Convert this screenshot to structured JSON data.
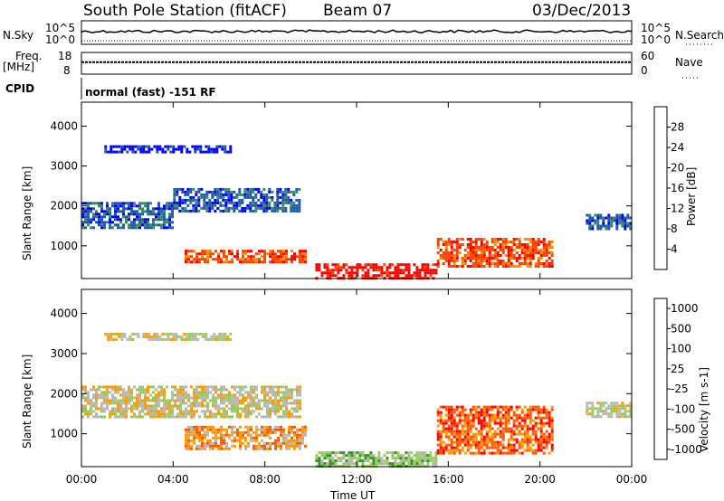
{
  "header": {
    "station": "South Pole Station (fitACF)",
    "beam": "Beam 07",
    "date": "03/Dec/2013"
  },
  "side_labels": {
    "nsky": "N.Sky",
    "freq": "Freq.",
    "freq_unit": "[MHz]",
    "cpid": "CPID",
    "nsearch": "N.Search",
    "nave": "Nave"
  },
  "noise_panel": {
    "left_top": "10^5",
    "left_bottom": "10^0",
    "right_top": "10^5",
    "right_bottom": "10^0"
  },
  "freq_panel": {
    "left_top": "18",
    "left_bottom": "8",
    "right_top": "60",
    "right_bottom": "0"
  },
  "cpid_text": "normal (fast) -151 RF",
  "colors": {
    "power": [
      "#0000ff",
      "#1f5aa8",
      "#3c8c5a",
      "#8ec44a",
      "#f0c800",
      "#ff8c00",
      "#ff4400",
      "#ff0000"
    ],
    "velocity": [
      "#ff0000",
      "#ff5a00",
      "#ff9a00",
      "#b8b8b8",
      "#90d050",
      "#3a8c3a",
      "#2060b0",
      "#1e1ec8"
    ]
  },
  "chart_data": [
    {
      "type": "heatmap",
      "name": "Power",
      "ylabel": "Slant Range [km]",
      "xlabel": "Time UT",
      "x_ticks": [
        "00:00",
        "04:00",
        "08:00",
        "12:00",
        "16:00",
        "20:00",
        "00:00"
      ],
      "y_ticks": [
        1000,
        2000,
        3000,
        4000
      ],
      "ylim": [
        180,
        4600
      ],
      "colorbar": {
        "label": "Power [dB]",
        "ticks": [
          "4",
          "8",
          "12",
          "16",
          "20",
          "24",
          "28"
        ]
      },
      "regions": [
        {
          "t0": 0.0,
          "t1": 4.0,
          "r0": 1450,
          "r1": 2100,
          "level": 1
        },
        {
          "t0": 4.0,
          "t1": 9.5,
          "r0": 1900,
          "r1": 2450,
          "level": 1
        },
        {
          "t0": 1.0,
          "t1": 6.5,
          "r0": 3380,
          "r1": 3520,
          "level": 0
        },
        {
          "t0": 4.5,
          "t1": 9.8,
          "r0": 620,
          "r1": 900,
          "level": 6
        },
        {
          "t0": 10.2,
          "t1": 15.5,
          "r0": 200,
          "r1": 560,
          "level": 7
        },
        {
          "t0": 15.5,
          "t1": 20.5,
          "r0": 500,
          "r1": 1200,
          "level": 6
        },
        {
          "t0": 22.0,
          "t1": 24.0,
          "r0": 1450,
          "r1": 1800,
          "level": 1
        }
      ]
    },
    {
      "type": "heatmap",
      "name": "Velocity",
      "ylabel": "Slant Range [km]",
      "xlabel": "Time UT",
      "x_ticks": [
        "00:00",
        "04:00",
        "08:00",
        "12:00",
        "16:00",
        "20:00",
        "00:00"
      ],
      "y_ticks": [
        1000,
        2000,
        3000,
        4000
      ],
      "ylim": [
        180,
        4600
      ],
      "colorbar": {
        "label": "Velocity [m s-1]",
        "ticks": [
          "1000",
          "500",
          "100",
          "25",
          "-25",
          "-100",
          "-500",
          "-1000"
        ]
      },
      "regions": [
        {
          "t0": 0.0,
          "t1": 9.5,
          "r0": 1450,
          "r1": 2200,
          "level": 3
        },
        {
          "t0": 1.0,
          "t1": 6.5,
          "r0": 3380,
          "r1": 3520,
          "level": 3
        },
        {
          "t0": 4.5,
          "t1": 9.8,
          "r0": 650,
          "r1": 1200,
          "level": 2
        },
        {
          "t0": 10.2,
          "t1": 15.5,
          "r0": 200,
          "r1": 560,
          "level": 4
        },
        {
          "t0": 15.5,
          "t1": 20.5,
          "r0": 500,
          "r1": 1700,
          "level": 1
        },
        {
          "t0": 22.0,
          "t1": 24.0,
          "r0": 1450,
          "r1": 1800,
          "level": 3
        }
      ]
    }
  ],
  "noise_series": {
    "upper_level": 0.55,
    "lower_level": 0.15
  },
  "freq_series": {
    "level": 0.55
  }
}
